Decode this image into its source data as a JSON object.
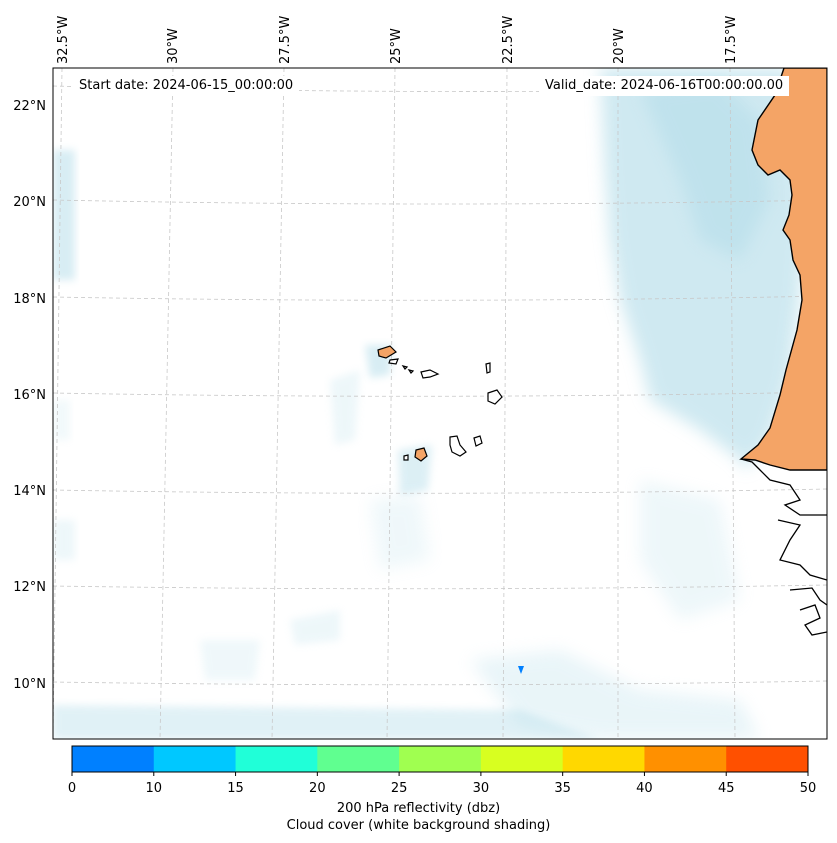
{
  "map": {
    "start_date": "Start date: 2024-06-15_00:00:00",
    "valid_date": "Valid_date: 2024-06-16T00:00:00.00",
    "lon_labels": [
      "32.5°W",
      "30°W",
      "27.5°W",
      "25°W",
      "22.5°W",
      "20°W",
      "17.5°W"
    ],
    "lat_labels": [
      "22°N",
      "20°N",
      "18°N",
      "16°N",
      "14°N",
      "12°N",
      "10°N"
    ],
    "region": "Cabo Verde and West African coast"
  },
  "colorbar": {
    "ticks": [
      "0",
      "10",
      "15",
      "20",
      "25",
      "30",
      "35",
      "40",
      "45",
      "50"
    ],
    "colors": [
      "#0080ff",
      "#00c8ff",
      "#20ffd8",
      "#60ff90",
      "#a0ff50",
      "#d8ff20",
      "#ffd800",
      "#ff9000",
      "#ff5000"
    ],
    "label_line1": "200 hPa reflectivity (dbz)",
    "label_line2": "Cloud cover (white background shading)"
  },
  "colors": {
    "land": "#f4a466",
    "cloud": "#a9d8e6",
    "grid": "#c8c8c8"
  }
}
